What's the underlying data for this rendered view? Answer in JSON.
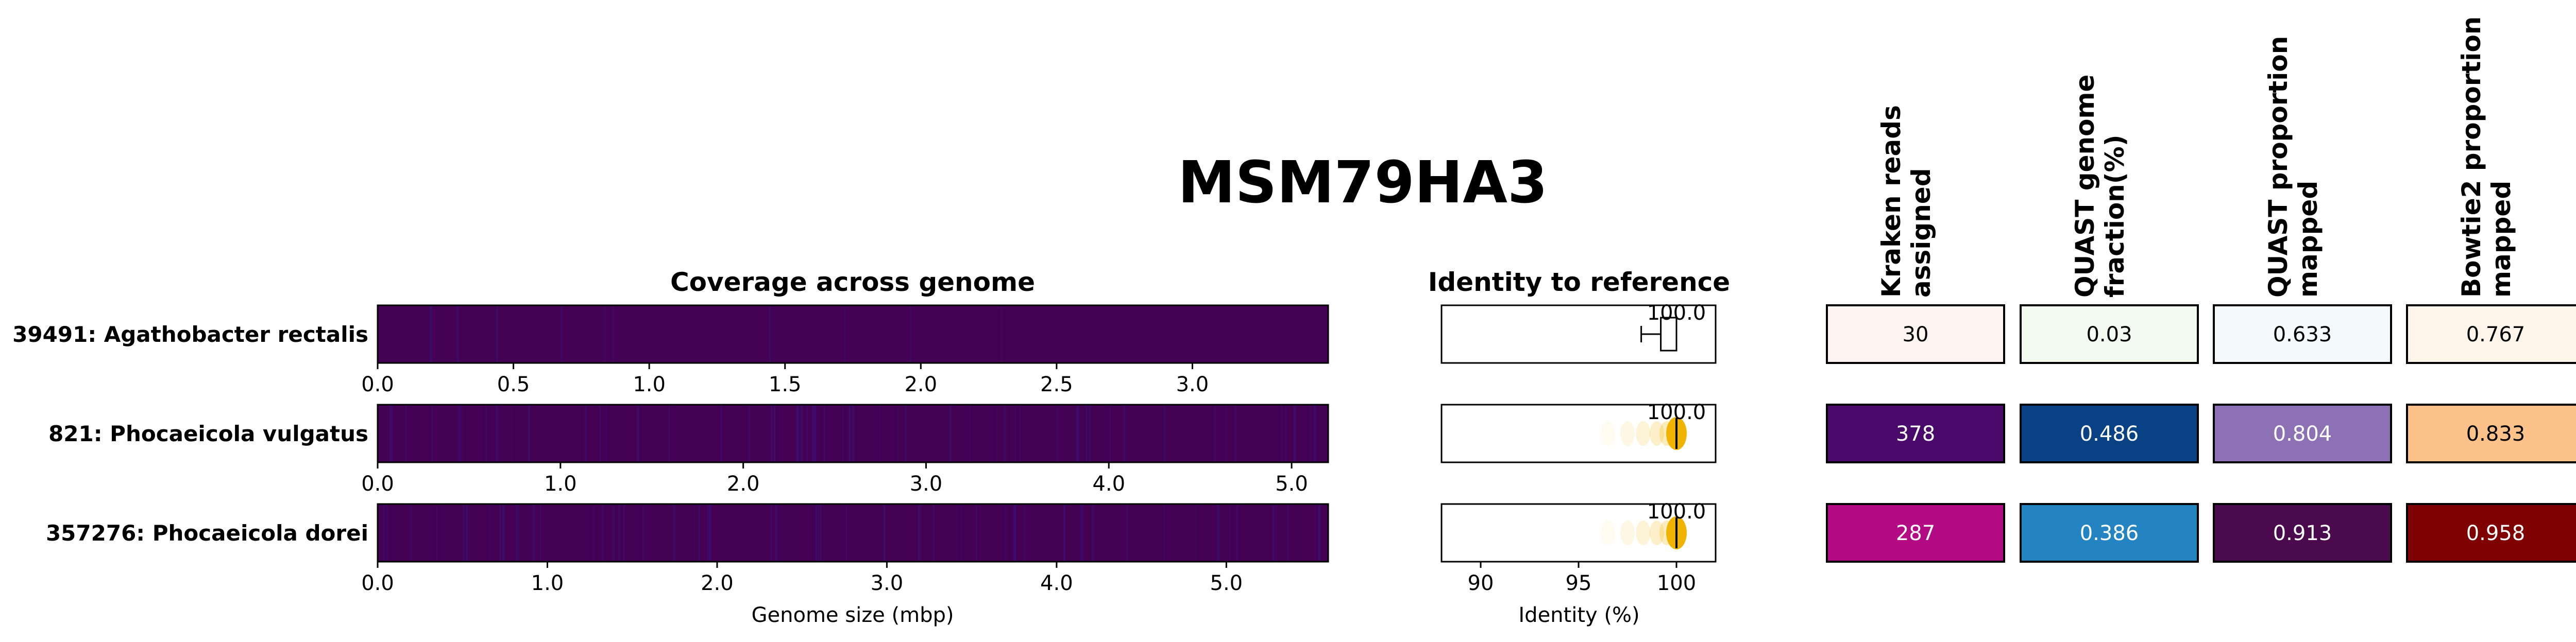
{
  "title": "MSM79HA3",
  "colors": {
    "coverage_bg": "#440154",
    "coverage_line": "#3b0f70",
    "identity_point": "#f0b400",
    "identity_median": "#000000"
  },
  "chart_data": [
    {
      "type": "heatmap",
      "title": "Coverage across genome",
      "xlabel": "Genome size (mbp)",
      "rows": [
        {
          "label": "39491: Agathobacter rectalis",
          "xlim": [
            0,
            3.5
          ],
          "ticks": [
            "0.0",
            "0.5",
            "1.0",
            "1.5",
            "2.0",
            "2.5",
            "3.0"
          ],
          "tick_values": [
            0,
            0.5,
            1.0,
            1.5,
            2.0,
            2.5,
            3.0
          ]
        },
        {
          "label": "821: Phocaeicola vulgatus",
          "xlim": [
            0,
            5.2
          ],
          "ticks": [
            "0.0",
            "1.0",
            "2.0",
            "3.0",
            "4.0",
            "5.0"
          ],
          "tick_values": [
            0,
            1.0,
            2.0,
            3.0,
            4.0,
            5.0
          ]
        },
        {
          "label": "357276: Phocaeicola dorei",
          "xlim": [
            0,
            5.6
          ],
          "ticks": [
            "0.0",
            "1.0",
            "2.0",
            "3.0",
            "4.0",
            "5.0"
          ],
          "tick_values": [
            0,
            1.0,
            2.0,
            3.0,
            4.0,
            5.0
          ]
        }
      ]
    },
    {
      "type": "box",
      "title": "Identity to reference",
      "xlabel": "Identity (%)",
      "xlim": [
        88,
        102
      ],
      "ticks": [
        "90",
        "95",
        "100"
      ],
      "tick_values": [
        90,
        95,
        100
      ],
      "rows": [
        {
          "label": "39491: Agathobacter rectalis",
          "median_label": "100.0",
          "median": 100.0,
          "box": [
            99.2,
            100.0
          ],
          "whisker_low": 98.2,
          "style": "box"
        },
        {
          "label": "821: Phocaeicola vulgatus",
          "median_label": "100.0",
          "median": 100.0,
          "style": "violin"
        },
        {
          "label": "357276: Phocaeicola dorei",
          "median_label": "100.0",
          "median": 100.0,
          "style": "violin"
        }
      ]
    },
    {
      "type": "table",
      "columns": [
        {
          "header": "Kraken reads assigned",
          "header_lines": [
            "Kraken reads",
            "assigned"
          ],
          "values": [
            "30",
            "378",
            "287"
          ],
          "fills": [
            "#fff4f2",
            "#4a0a6b",
            "#b40a83"
          ],
          "text_colors": [
            "#000000",
            "#ffffff",
            "#ffffff"
          ]
        },
        {
          "header": "QUAST genome fraction(%)",
          "header_lines": [
            "QUAST genome",
            "fraction(%)"
          ],
          "values": [
            "0.03",
            "0.486",
            "0.386"
          ],
          "fills": [
            "#f3faf0",
            "#084184",
            "#2484c1"
          ],
          "text_colors": [
            "#000000",
            "#ffffff",
            "#ffffff"
          ]
        },
        {
          "header": "QUAST proportion mapped",
          "header_lines": [
            "QUAST proportion",
            "mapped"
          ],
          "values": [
            "0.633",
            "0.804",
            "0.913"
          ],
          "fills": [
            "#f5fbfc",
            "#8c71b5",
            "#4b0a4e"
          ],
          "text_colors": [
            "#000000",
            "#ffffff",
            "#ffffff"
          ]
        },
        {
          "header": "Bowtie2 proportion mapped",
          "header_lines": [
            "Bowtie2 proportion",
            "mapped"
          ],
          "values": [
            "0.767",
            "0.833",
            "0.958"
          ],
          "fills": [
            "#fff5eb",
            "#fdc18a",
            "#7f0000"
          ],
          "text_colors": [
            "#000000",
            "#000000",
            "#ffffff"
          ]
        }
      ]
    }
  ]
}
